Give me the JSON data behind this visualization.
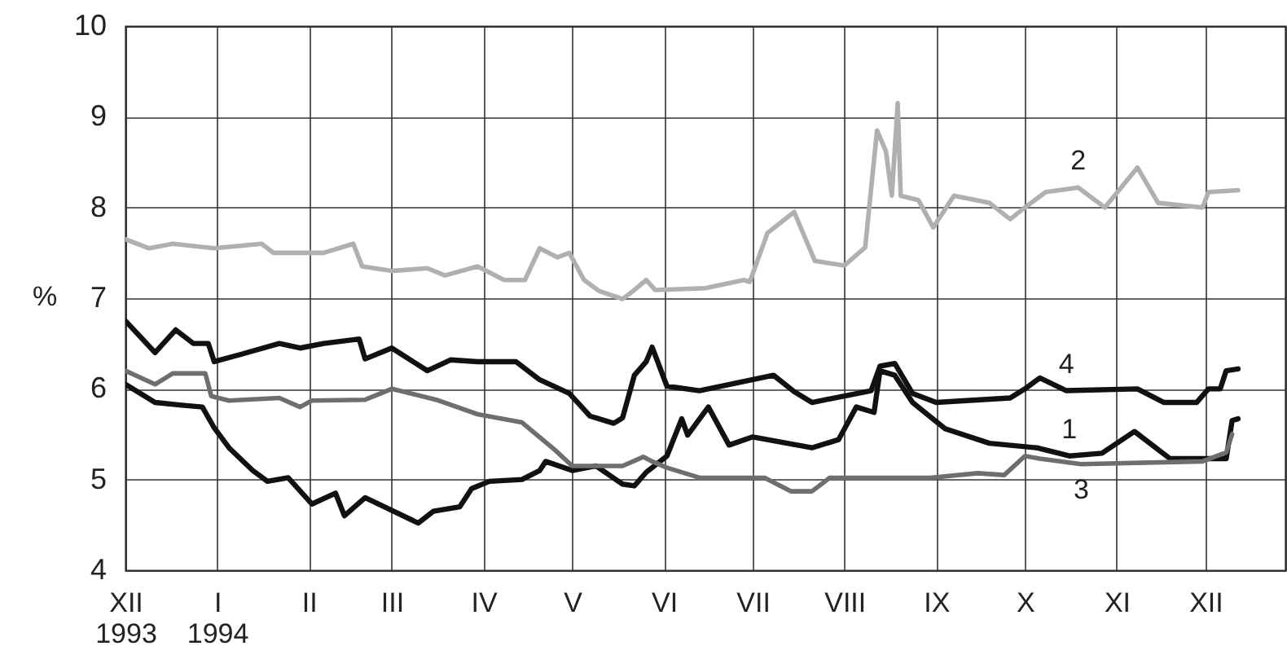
{
  "chart_data": {
    "type": "line",
    "ylabel": "%",
    "ylim": [
      4,
      10
    ],
    "yticks": [
      4,
      5,
      6,
      7,
      8,
      9,
      10
    ],
    "xlim": [
      "1993-12-01",
      "1994-12-28"
    ],
    "xticks": [
      {
        "value": "1993-12-01",
        "label": "XII\n1993"
      },
      {
        "value": "1994-01-01",
        "label": "I\n1994"
      },
      {
        "value": "1994-02-01",
        "label": "II"
      },
      {
        "value": "1994-03-01",
        "label": "III"
      },
      {
        "value": "1994-04-01",
        "label": "IV"
      },
      {
        "value": "1994-05-01",
        "label": "V"
      },
      {
        "value": "1994-06-01",
        "label": "VI"
      },
      {
        "value": "1994-07-01",
        "label": "VII"
      },
      {
        "value": "1994-08-01",
        "label": "VIII"
      },
      {
        "value": "1994-09-01",
        "label": "IX"
      },
      {
        "value": "1994-10-01",
        "label": "X"
      },
      {
        "value": "1994-11-01",
        "label": "XI"
      },
      {
        "value": "1994-12-01",
        "label": "XII"
      }
    ],
    "grid": true,
    "line_style": "solid",
    "marker": "none",
    "series": [
      {
        "name": "2",
        "color": "#b0b0b0",
        "x": [
          "1993-12-01",
          "1993-12-09",
          "1993-12-17",
          "1993-12-31",
          "1994-01-16",
          "1994-01-20",
          "1994-02-06",
          "1994-02-16",
          "1994-02-19",
          "1994-03-01",
          "1994-03-13",
          "1994-03-19",
          "1994-03-30",
          "1994-04-08",
          "1994-04-15",
          "1994-04-20",
          "1994-04-26",
          "1994-04-30",
          "1994-05-05",
          "1994-05-10",
          "1994-05-18",
          "1994-05-22",
          "1994-05-26",
          "1994-05-29",
          "1994-06-15",
          "1994-06-28",
          "1994-06-30",
          "1994-07-06",
          "1994-07-15",
          "1994-07-22",
          "1994-08-01",
          "1994-08-08",
          "1994-08-12",
          "1994-08-15",
          "1994-08-17",
          "1994-08-19",
          "1994-08-20",
          "1994-08-26",
          "1994-08-31",
          "1994-09-07",
          "1994-09-19",
          "1994-09-26",
          "1994-10-01",
          "1994-10-08",
          "1994-10-19",
          "1994-10-28",
          "1994-11-08",
          "1994-11-15",
          "1994-11-30",
          "1994-12-02",
          "1994-12-12"
        ],
        "values": [
          7.65,
          7.55,
          7.6,
          7.55,
          7.6,
          7.5,
          7.5,
          7.6,
          7.35,
          7.3,
          7.33,
          7.25,
          7.35,
          7.2,
          7.2,
          7.55,
          7.45,
          7.5,
          7.2,
          7.08,
          6.99,
          7.09,
          7.2,
          7.09,
          7.11,
          7.2,
          7.18,
          7.72,
          7.95,
          7.41,
          7.36,
          7.56,
          8.85,
          8.62,
          8.13,
          9.15,
          8.13,
          8.08,
          7.78,
          8.13,
          8.05,
          7.87,
          8.0,
          8.17,
          8.22,
          8.0,
          8.44,
          8.05,
          8.0,
          8.17,
          8.19
        ]
      },
      {
        "name": "4",
        "color": "#111111",
        "x": [
          "1993-12-01",
          "1993-12-11",
          "1993-12-18",
          "1993-12-24",
          "1993-12-29",
          "1993-12-31",
          "1994-01-09",
          "1994-01-22",
          "1994-01-29",
          "1994-02-06",
          "1994-02-18",
          "1994-02-20",
          "1994-03-01",
          "1994-03-13",
          "1994-03-21",
          "1994-03-30",
          "1994-04-12",
          "1994-04-20",
          "1994-04-30",
          "1994-05-07",
          "1994-05-15",
          "1994-05-18",
          "1994-05-22",
          "1994-05-26",
          "1994-05-28",
          "1994-06-02",
          "1994-06-13",
          "1994-07-08",
          "1994-07-15",
          "1994-07-21",
          "1994-08-10",
          "1994-08-13",
          "1994-08-18",
          "1994-08-24",
          "1994-09-01",
          "1994-09-26",
          "1994-10-01",
          "1994-10-06",
          "1994-10-15",
          "1994-11-08",
          "1994-11-17",
          "1994-11-28",
          "1994-12-02",
          "1994-12-06",
          "1994-12-08",
          "1994-12-12"
        ],
        "values": [
          6.75,
          6.4,
          6.65,
          6.5,
          6.5,
          6.3,
          6.38,
          6.5,
          6.45,
          6.5,
          6.55,
          6.33,
          6.45,
          6.2,
          6.32,
          6.3,
          6.3,
          6.1,
          5.95,
          5.7,
          5.62,
          5.68,
          6.15,
          6.3,
          6.46,
          6.03,
          5.98,
          6.15,
          5.97,
          5.85,
          5.98,
          6.25,
          6.28,
          5.95,
          5.85,
          5.9,
          6.0,
          6.12,
          5.98,
          6.0,
          5.85,
          5.85,
          6.0,
          6.0,
          6.2,
          6.22
        ]
      },
      {
        "name": "1",
        "color": "#111111",
        "x": [
          "1993-12-01",
          "1993-12-11",
          "1993-12-20",
          "1993-12-27",
          "1993-12-31",
          "1994-01-05",
          "1994-01-13",
          "1994-01-18",
          "1994-01-25",
          "1994-02-02",
          "1994-02-10",
          "1994-02-13",
          "1994-02-20",
          "1994-03-10",
          "1994-03-15",
          "1994-03-24",
          "1994-03-28",
          "1994-04-03",
          "1994-04-14",
          "1994-04-20",
          "1994-04-22",
          "1994-05-01",
          "1994-05-09",
          "1994-05-18",
          "1994-05-22",
          "1994-05-26",
          "1994-06-02",
          "1994-06-07",
          "1994-06-09",
          "1994-06-16",
          "1994-06-23",
          "1994-07-01",
          "1994-07-21",
          "1994-07-30",
          "1994-08-05",
          "1994-08-11",
          "1994-08-13",
          "1994-08-18",
          "1994-08-24",
          "1994-09-04",
          "1994-09-19",
          "1994-10-05",
          "1994-10-16",
          "1994-10-27",
          "1994-11-07",
          "1994-11-19",
          "1994-12-08",
          "1994-12-10",
          "1994-12-12"
        ],
        "values": [
          6.05,
          5.85,
          5.82,
          5.8,
          5.57,
          5.35,
          5.1,
          4.98,
          5.02,
          4.73,
          4.85,
          4.6,
          4.8,
          4.52,
          4.65,
          4.7,
          4.9,
          4.98,
          5.0,
          5.1,
          5.2,
          5.1,
          5.15,
          4.95,
          4.93,
          5.08,
          5.26,
          5.67,
          5.49,
          5.8,
          5.38,
          5.47,
          5.35,
          5.44,
          5.8,
          5.74,
          6.2,
          6.15,
          5.85,
          5.56,
          5.4,
          5.35,
          5.26,
          5.29,
          5.53,
          5.23,
          5.23,
          5.65,
          5.67
        ]
      },
      {
        "name": "3",
        "color": "#6e6e6e",
        "x": [
          "1993-12-01",
          "1993-12-11",
          "1993-12-17",
          "1993-12-28",
          "1993-12-30",
          "1994-01-05",
          "1994-01-22",
          "1994-01-29",
          "1994-02-02",
          "1994-02-20",
          "1994-03-01",
          "1994-03-16",
          "1994-03-30",
          "1994-04-14",
          "1994-04-25",
          "1994-05-01",
          "1994-05-10",
          "1994-05-18",
          "1994-05-25",
          "1994-05-28",
          "1994-06-02",
          "1994-06-13",
          "1994-07-05",
          "1994-07-14",
          "1994-07-21",
          "1994-07-27",
          "1994-08-30",
          "1994-09-15",
          "1994-09-24",
          "1994-10-01",
          "1994-10-06",
          "1994-10-20",
          "1994-11-30",
          "1994-12-08",
          "1994-12-10"
        ],
        "values": [
          6.2,
          6.05,
          6.17,
          6.17,
          5.92,
          5.87,
          5.9,
          5.8,
          5.87,
          5.88,
          6.0,
          5.88,
          5.72,
          5.63,
          5.33,
          5.15,
          5.15,
          5.15,
          5.25,
          5.2,
          5.13,
          5.02,
          5.02,
          4.87,
          4.87,
          5.02,
          5.02,
          5.07,
          5.05,
          5.26,
          5.23,
          5.17,
          5.2,
          5.3,
          5.5
        ]
      }
    ]
  }
}
